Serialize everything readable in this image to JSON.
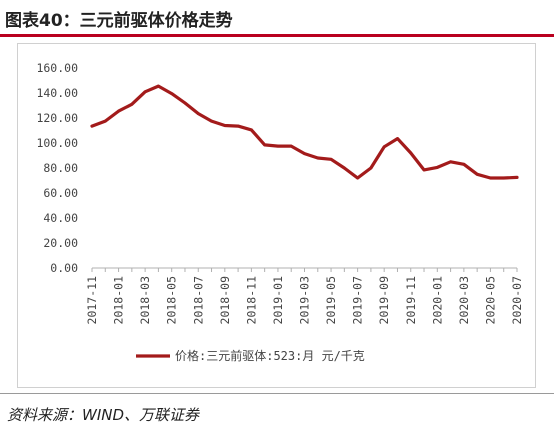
{
  "figure": {
    "title": "图表40：三元前驱体价格走势",
    "source": "资料来源：WIND、万联证券"
  },
  "colors": {
    "series": "#a31b1b",
    "accent": "#b9001f"
  },
  "chart_data": {
    "type": "line",
    "title": "",
    "xlabel": "",
    "ylabel": "",
    "ylim": [
      0,
      160
    ],
    "y_ticks": [
      "0.00",
      "20.00",
      "40.00",
      "60.00",
      "80.00",
      "100.00",
      "120.00",
      "140.00",
      "160.00"
    ],
    "x_tick_labels": [
      "2017-11",
      "2018-01",
      "2018-03",
      "2018-05",
      "2018-07",
      "2018-09",
      "2018-11",
      "2019-01",
      "2019-03",
      "2019-05",
      "2019-07",
      "2019-09",
      "2019-11",
      "2020-01",
      "2020-03",
      "2020-05",
      "2020-07"
    ],
    "x": [
      "2017-11",
      "2017-12",
      "2018-01",
      "2018-02",
      "2018-03",
      "2018-04",
      "2018-05",
      "2018-06",
      "2018-07",
      "2018-08",
      "2018-09",
      "2018-10",
      "2018-11",
      "2018-12",
      "2019-01",
      "2019-02",
      "2019-03",
      "2019-04",
      "2019-05",
      "2019-06",
      "2019-07",
      "2019-08",
      "2019-09",
      "2019-10",
      "2019-11",
      "2019-12",
      "2020-01",
      "2020-02",
      "2020-03",
      "2020-04",
      "2020-05",
      "2020-06",
      "2020-07"
    ],
    "series": [
      {
        "name": "价格:三元前驱体:523:月 元/千克",
        "values": [
          113.5,
          117.5,
          125.5,
          131,
          141,
          145.5,
          139.5,
          132,
          123.5,
          117.5,
          114,
          113.5,
          110.5,
          98.5,
          97.5,
          97.5,
          91.5,
          88,
          87,
          80,
          72,
          80,
          97,
          103.5,
          92,
          78.5,
          80.5,
          85,
          83,
          75,
          72,
          72,
          72.5
        ]
      }
    ],
    "grid": false,
    "legend_position": "bottom"
  }
}
